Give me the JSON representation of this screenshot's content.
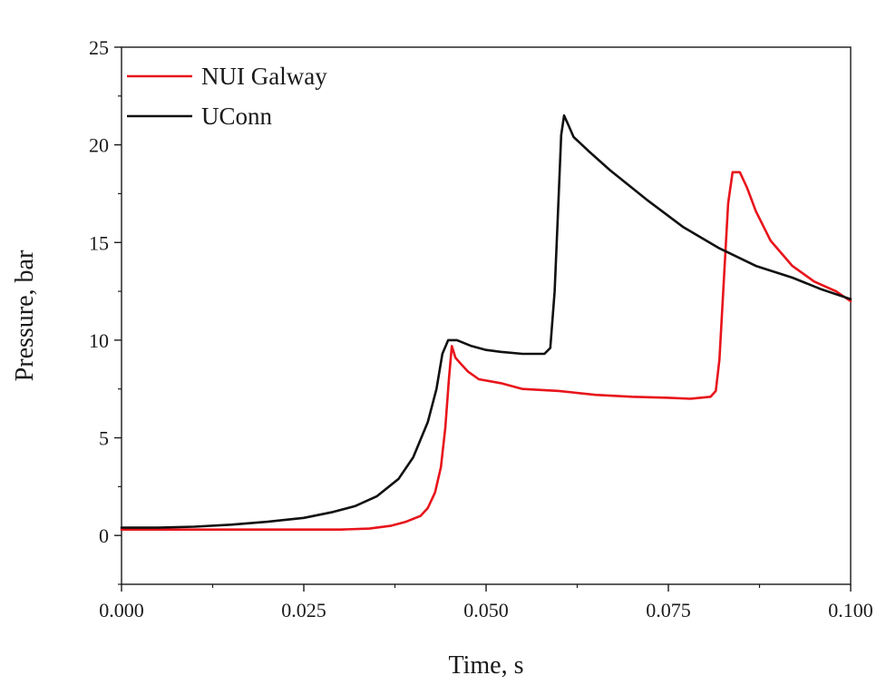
{
  "chart_data": {
    "type": "line",
    "title": "",
    "xlabel": "Time, s",
    "ylabel": "Pressure, bar",
    "xlim": [
      0,
      0.1
    ],
    "ylim": [
      -2.5,
      25
    ],
    "x_ticks": [
      "0.000",
      "0.025",
      "0.050",
      "0.075",
      "0.100"
    ],
    "y_ticks": [
      "0",
      "5",
      "10",
      "15",
      "20",
      "25"
    ],
    "grid": false,
    "legend_position": "top-left",
    "series": [
      {
        "name": "NUI Galway",
        "color": "#e8141b",
        "points": [
          [
            0,
            0.3
          ],
          [
            0.01,
            0.3
          ],
          [
            0.02,
            0.3
          ],
          [
            0.025,
            0.3
          ],
          [
            0.03,
            0.3
          ],
          [
            0.034,
            0.35
          ],
          [
            0.037,
            0.5
          ],
          [
            0.039,
            0.7
          ],
          [
            0.041,
            1.0
          ],
          [
            0.042,
            1.4
          ],
          [
            0.043,
            2.2
          ],
          [
            0.0438,
            3.5
          ],
          [
            0.0444,
            5.5
          ],
          [
            0.0449,
            8.0
          ],
          [
            0.0453,
            9.7
          ],
          [
            0.0458,
            9.1
          ],
          [
            0.0465,
            8.8
          ],
          [
            0.0475,
            8.4
          ],
          [
            0.049,
            8.0
          ],
          [
            0.052,
            7.8
          ],
          [
            0.055,
            7.5
          ],
          [
            0.06,
            7.4
          ],
          [
            0.065,
            7.2
          ],
          [
            0.07,
            7.1
          ],
          [
            0.075,
            7.05
          ],
          [
            0.078,
            7.0
          ],
          [
            0.0808,
            7.1
          ],
          [
            0.0815,
            7.4
          ],
          [
            0.082,
            9.0
          ],
          [
            0.0826,
            13.0
          ],
          [
            0.0832,
            17.0
          ],
          [
            0.0838,
            18.6
          ],
          [
            0.0848,
            18.6
          ],
          [
            0.0858,
            17.8
          ],
          [
            0.087,
            16.6
          ],
          [
            0.089,
            15.1
          ],
          [
            0.092,
            13.8
          ],
          [
            0.095,
            13.0
          ],
          [
            0.098,
            12.5
          ],
          [
            0.1,
            12.0
          ]
        ]
      },
      {
        "name": "UConn",
        "color": "#111111",
        "points": [
          [
            0,
            0.4
          ],
          [
            0.005,
            0.4
          ],
          [
            0.01,
            0.45
          ],
          [
            0.015,
            0.55
          ],
          [
            0.02,
            0.7
          ],
          [
            0.025,
            0.9
          ],
          [
            0.029,
            1.2
          ],
          [
            0.032,
            1.5
          ],
          [
            0.035,
            2.0
          ],
          [
            0.038,
            2.9
          ],
          [
            0.04,
            4.0
          ],
          [
            0.042,
            5.8
          ],
          [
            0.0432,
            7.5
          ],
          [
            0.044,
            9.3
          ],
          [
            0.0448,
            10.0
          ],
          [
            0.046,
            10.0
          ],
          [
            0.048,
            9.7
          ],
          [
            0.05,
            9.5
          ],
          [
            0.052,
            9.4
          ],
          [
            0.055,
            9.3
          ],
          [
            0.058,
            9.3
          ],
          [
            0.0588,
            9.6
          ],
          [
            0.0594,
            12.5
          ],
          [
            0.0598,
            16.0
          ],
          [
            0.0603,
            20.5
          ],
          [
            0.0607,
            21.5
          ],
          [
            0.0613,
            21.0
          ],
          [
            0.062,
            20.4
          ],
          [
            0.064,
            19.7
          ],
          [
            0.067,
            18.7
          ],
          [
            0.072,
            17.2
          ],
          [
            0.077,
            15.8
          ],
          [
            0.082,
            14.7
          ],
          [
            0.087,
            13.8
          ],
          [
            0.092,
            13.2
          ],
          [
            0.096,
            12.6
          ],
          [
            0.1,
            12.1
          ]
        ]
      }
    ]
  }
}
